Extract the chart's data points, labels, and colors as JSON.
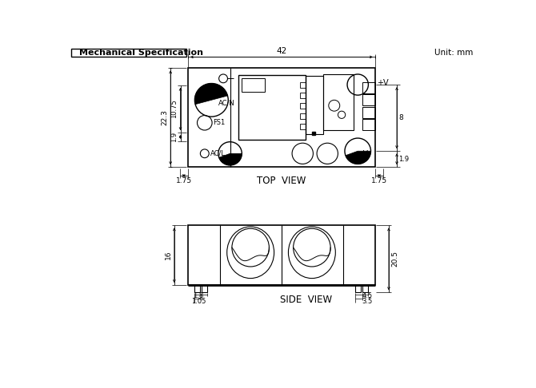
{
  "title": "Mechanical Specification",
  "unit_label": "Unit: mm",
  "top_view_label": "TOP  VIEW",
  "side_view_label": "SIDE  VIEW",
  "bg_color": "#ffffff",
  "line_color": "#000000"
}
